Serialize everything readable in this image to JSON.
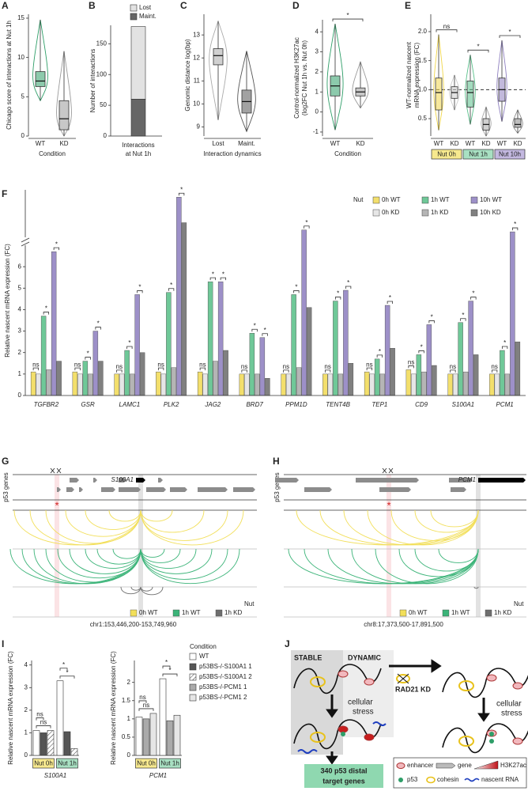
{
  "chart_data": [
    {
      "panel": "A",
      "type": "box",
      "ylabel": "Chicago score of interactions at Nut 1h",
      "xlabel": "Condition",
      "categories": [
        "WT",
        "KD"
      ],
      "boxes": [
        {
          "min": 4.5,
          "q1": 6.3,
          "median": 7,
          "q3": 8.2,
          "max": 14.8
        },
        {
          "min": 0,
          "q1": 0.8,
          "median": 2.2,
          "q3": 4.5,
          "max": 10.8
        }
      ],
      "colors": [
        "#2e9e68",
        "#9a9a9a"
      ],
      "ylim": [
        0,
        15.5
      ],
      "yticks": [
        0,
        5,
        10,
        15
      ]
    },
    {
      "panel": "B",
      "type": "stacked_bar",
      "ylabel": "Number of interactions",
      "xlabel": [
        "Interactions",
        "at Nut 1h"
      ],
      "series": [
        {
          "name": "Lost",
          "color": "#e2e2e2",
          "values": [
            118
          ]
        },
        {
          "name": "Maint.",
          "color": "#666666",
          "values": [
            60
          ]
        }
      ],
      "ylim": [
        0,
        180
      ],
      "yticks": [
        0,
        50,
        100,
        150
      ]
    },
    {
      "panel": "C",
      "type": "box",
      "ylabel": "Genomic distance log(bp)",
      "xlabel": "Interaction dynamics",
      "categories": [
        "Lost",
        "Maint."
      ],
      "boxes": [
        {
          "min": 9.3,
          "q1": 11.7,
          "median": 12.1,
          "q3": 12.4,
          "max": 13.6
        },
        {
          "min": 8.8,
          "q1": 9.6,
          "median": 10.1,
          "q3": 10.6,
          "max": 12.3
        }
      ],
      "colors": [
        "#aaaaaa",
        "#555555"
      ],
      "ylim": [
        8.6,
        13.9
      ],
      "yticks": [
        9,
        10,
        11,
        12,
        13
      ]
    },
    {
      "panel": "D",
      "type": "box",
      "ylabel": [
        "Control-normalized H3K27ac",
        "(log2FC Nut 1h vs. Nut 0h)"
      ],
      "xlabel": "Condition",
      "categories": [
        "WT",
        "KD"
      ],
      "boxes": [
        {
          "min": -0.9,
          "q1": 0.8,
          "median": 1.3,
          "q3": 1.8,
          "max": 4.4
        },
        {
          "min": 0.2,
          "q1": 0.8,
          "median": 1.0,
          "q3": 1.2,
          "max": 2.5
        }
      ],
      "colors": [
        "#2e9e68",
        "#9a9a9a"
      ],
      "ylim": [
        -1.2,
        4.6
      ],
      "yticks": [
        -1,
        0,
        1,
        2,
        3,
        4
      ],
      "significance": [
        "*"
      ]
    },
    {
      "panel": "E",
      "type": "box",
      "ylabel": [
        "WT-normalized nascent",
        "mRNA expression (FC)"
      ],
      "categories": [
        "WT",
        "KD",
        "WT",
        "KD",
        "WT",
        "KD"
      ],
      "groups": [
        "Nut 0h",
        "Nut 1h",
        "Nut 10h"
      ],
      "group_colors": [
        "#f7e98e",
        "#a8e0c2",
        "#c3b8e0"
      ],
      "boxes": [
        {
          "min": 0.3,
          "q1": 0.65,
          "median": 0.95,
          "q3": 1.2,
          "max": 1.95
        },
        {
          "min": 0.65,
          "q1": 0.85,
          "median": 0.95,
          "q3": 1.05,
          "max": 1.25
        },
        {
          "min": 0.4,
          "q1": 0.7,
          "median": 0.95,
          "q3": 1.15,
          "max": 1.6
        },
        {
          "min": 0.2,
          "q1": 0.3,
          "median": 0.4,
          "q3": 0.5,
          "max": 0.7
        },
        {
          "min": 0.45,
          "q1": 0.8,
          "median": 1.0,
          "q3": 1.2,
          "max": 1.85
        },
        {
          "min": 0.25,
          "q1": 0.35,
          "median": 0.4,
          "q3": 0.5,
          "max": 0.65
        }
      ],
      "colors": [
        "#f0d64a",
        "#cccccc",
        "#58c08a",
        "#aaaaaa",
        "#8f80c0",
        "#888888"
      ],
      "ylim": [
        0.2,
        2.3
      ],
      "yticks": [
        0.5,
        {
          "value": 1,
          "label": "1.0"
        },
        1.5,
        {
          "value": 2,
          "label": "2.0"
        }
      ],
      "significance": [
        "ns",
        "*",
        "*"
      ]
    },
    {
      "panel": "F",
      "type": "bar",
      "ylabel": "Relative nascent mRNA expression (FC)",
      "legend_title": "Nut",
      "categories": [
        "TGFBR2",
        "GSR",
        "LAMC1",
        "PLK2",
        "JAG2",
        "BRD7",
        "PPM1D",
        "TENT4B",
        "TEP1",
        "CD9",
        "S100A1",
        "PCM1"
      ],
      "series": [
        {
          "name": "0h WT",
          "color": "#f3df6c",
          "values": [
            1.1,
            1.1,
            1.0,
            1.1,
            1.1,
            1.0,
            1.0,
            1.0,
            1.1,
            1.2,
            1.0,
            1.0
          ]
        },
        {
          "name": "0h KD",
          "color": "#e6e6e6",
          "values": [
            1.0,
            1.0,
            1.0,
            1.0,
            1.0,
            1.0,
            1.0,
            1.0,
            1.0,
            1.0,
            1.0,
            1.0
          ]
        },
        {
          "name": "1h WT",
          "color": "#6fc898",
          "values": [
            3.7,
            1.6,
            2.1,
            4.8,
            5.3,
            2.9,
            4.7,
            4.4,
            1.7,
            1.9,
            3.4,
            2.1
          ]
        },
        {
          "name": "1h KD",
          "color": "#b5b5b5",
          "values": [
            1.2,
            1.0,
            1.0,
            1.3,
            1.6,
            1.0,
            1.3,
            1.0,
            1.0,
            1.1,
            1.1,
            1.0
          ]
        },
        {
          "name": "10h WT",
          "color": "#9d90c8",
          "values": [
            6.7,
            3.0,
            4.7,
            18,
            5.3,
            2.7,
            9,
            4.9,
            4.2,
            3.3,
            4.4,
            8.5
          ]
        },
        {
          "name": "10h KD",
          "color": "#808080",
          "values": [
            1.6,
            1.6,
            2.0,
            11,
            2.1,
            0.8,
            4.1,
            1.5,
            2.2,
            1.4,
            1.9,
            2.5
          ]
        }
      ],
      "ylim": [
        0,
        20
      ],
      "yticks": [
        0,
        1,
        2,
        3,
        4,
        5,
        6
      ],
      "axis_break": 7,
      "significance": [
        [
          "ns",
          "*",
          "*"
        ],
        [
          "ns",
          "*",
          "*"
        ],
        [
          "ns",
          "*",
          "*"
        ],
        [
          "ns",
          "*",
          "*"
        ],
        [
          "ns",
          "*",
          "*"
        ],
        [
          "ns",
          "*",
          "*"
        ],
        [
          "ns",
          "*",
          "*"
        ],
        [
          "ns",
          "*",
          "*"
        ],
        [
          "ns",
          "*",
          "*"
        ],
        [
          "ns",
          "*",
          "*"
        ],
        [
          "ns",
          "*",
          "*"
        ],
        [
          "ns",
          "*",
          "*"
        ]
      ]
    },
    {
      "panel": "I",
      "type": "bar",
      "ylabel": "Relative nascent mRNA expression (FC)",
      "xlabel": "S100A1",
      "categories": [
        "Nut 0h",
        "Nut 1h"
      ],
      "group_colors": [
        "#f7e98e",
        "#a8e0c2"
      ],
      "series": [
        {
          "color": "#ffffff",
          "values": [
            1.1,
            3.3
          ]
        },
        {
          "color": "#555555",
          "values": [
            1.0,
            1.05
          ]
        },
        {
          "color": "#ffffff",
          "pattern": "hatch",
          "values": [
            1.1,
            0.3
          ]
        }
      ],
      "ylim": [
        0,
        4.2
      ],
      "yticks": [
        0,
        1,
        2,
        3,
        4
      ],
      "significance": [
        [
          "ns",
          "ns"
        ],
        [
          "*",
          "*"
        ]
      ]
    },
    {
      "type": "bar",
      "ylabel": "Relative nascent mRNA expression (FC)",
      "xlabel": "PCM1",
      "categories": [
        "Nut 0h",
        "Nut 1h"
      ],
      "group_colors": [
        "#f7e98e",
        "#a8e0c2"
      ],
      "series": [
        {
          "color": "#ffffff",
          "values": [
            1.05,
            2.1
          ]
        },
        {
          "color": "#aaaaaa",
          "values": [
            1.0,
            0.95
          ]
        },
        {
          "color": "#e6e6e6",
          "values": [
            1.15,
            1.1
          ]
        }
      ],
      "ylim": [
        0,
        2.6
      ],
      "yticks": [
        0,
        0.5,
        1,
        1.5,
        2
      ],
      "significance": [
        [
          "ns",
          "ns"
        ],
        [
          "*",
          "*"
        ]
      ]
    }
  ],
  "condition_legend": {
    "title": "Condition",
    "entries": [
      {
        "name": "WT",
        "color": "#ffffff"
      },
      {
        "name": "p53BS-/-S100A1 1",
        "color": "#555555"
      },
      {
        "name": "p53BS-/-S100A1 2",
        "color": "#ffffff",
        "pattern": "hatch"
      },
      {
        "name": "p53BS-/-PCM1 1",
        "color": "#aaaaaa"
      },
      {
        "name": "p53BS-/-PCM1 2",
        "color": "#e6e6e6"
      }
    ]
  },
  "genome_tracks": [
    {
      "panel": "G",
      "ylabel": "p53 genes",
      "gene": "S100A1",
      "star": "*",
      "region": "chr1:153,446,200-153,749,960",
      "legend_title": "Nut",
      "legend": [
        "0h WT",
        "1h WT",
        "1h KD"
      ],
      "colors": [
        "#f2df5a",
        "#3cb479",
        "#6e6e6e"
      ]
    },
    {
      "panel": "H",
      "ylabel": "p53 genes",
      "gene": "PCM1",
      "star": "*",
      "region": "chr8:17,373,500-17,891,500",
      "legend_title": "Nut",
      "legend": [
        "0h WT",
        "1h WT",
        "1h KD"
      ],
      "colors": [
        "#f2df5a",
        "#3cb479",
        "#6e6e6e"
      ]
    }
  ],
  "diagram": {
    "panel": "J",
    "stable": "STABLE",
    "dynamic": "DYNAMIC",
    "knockdown": "RAD21 KD",
    "stress": [
      "cellular",
      "stress"
    ],
    "result": [
      "340 p53 distal",
      "target genes"
    ],
    "legend": {
      "enhancer": "enhancer",
      "gene": "gene",
      "h3k27ac": "H3K27ac",
      "p53": "p53",
      "cohesin": "cohesin",
      "nascent_rna": "nascent RNA"
    }
  }
}
